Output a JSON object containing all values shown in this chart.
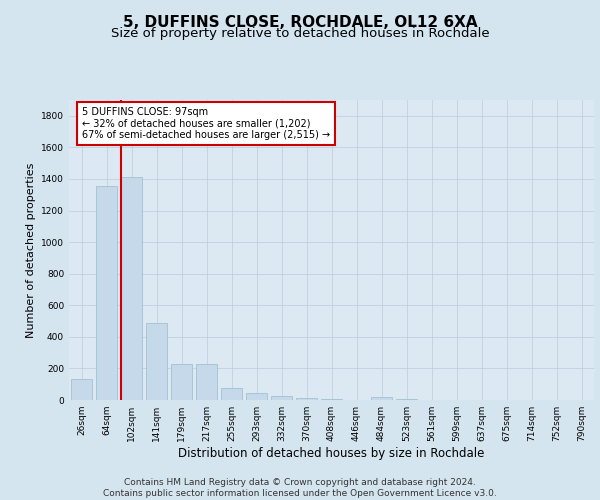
{
  "title": "5, DUFFINS CLOSE, ROCHDALE, OL12 6XA",
  "subtitle": "Size of property relative to detached houses in Rochdale",
  "xlabel": "Distribution of detached houses by size in Rochdale",
  "ylabel": "Number of detached properties",
  "categories": [
    "26sqm",
    "64sqm",
    "102sqm",
    "141sqm",
    "179sqm",
    "217sqm",
    "255sqm",
    "293sqm",
    "332sqm",
    "370sqm",
    "408sqm",
    "446sqm",
    "484sqm",
    "523sqm",
    "561sqm",
    "599sqm",
    "637sqm",
    "675sqm",
    "714sqm",
    "752sqm",
    "790sqm"
  ],
  "values": [
    135,
    1355,
    1415,
    490,
    225,
    225,
    75,
    45,
    25,
    15,
    5,
    2,
    20,
    5,
    2,
    0,
    0,
    0,
    0,
    0,
    0
  ],
  "bar_color": "#c6d9ea",
  "bar_edgecolor": "#99bbcc",
  "vline_color": "#cc0000",
  "annotation_text": "5 DUFFINS CLOSE: 97sqm\n← 32% of detached houses are smaller (1,202)\n67% of semi-detached houses are larger (2,515) →",
  "annotation_box_edgecolor": "#cc0000",
  "annotation_box_facecolor": "#ffffff",
  "ylim": [
    0,
    1900
  ],
  "yticks": [
    0,
    200,
    400,
    600,
    800,
    1000,
    1200,
    1400,
    1600,
    1800
  ],
  "grid_color": "#bbccdd",
  "background_color": "#d5e5f0",
  "plot_background_color": "#dce8f2",
  "footer": "Contains HM Land Registry data © Crown copyright and database right 2024.\nContains public sector information licensed under the Open Government Licence v3.0.",
  "title_fontsize": 11,
  "subtitle_fontsize": 9.5,
  "xlabel_fontsize": 8.5,
  "ylabel_fontsize": 8,
  "tick_fontsize": 6.5,
  "footer_fontsize": 6.5
}
